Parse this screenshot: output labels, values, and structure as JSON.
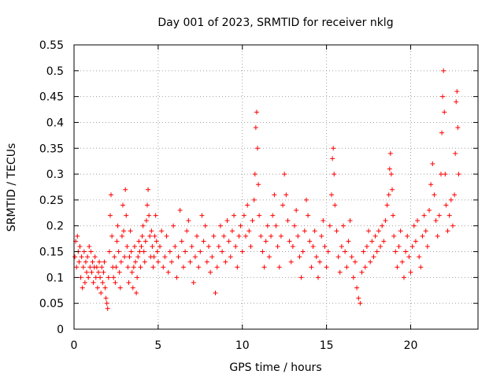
{
  "colors": {
    "series": "#ff0000",
    "grid": "#a0a0a0",
    "axes": "#000000",
    "background": "#ffffff"
  },
  "chart_data": {
    "type": "scatter",
    "marker": "plus",
    "title": "Day 001 of 2023, SRMTID for receiver nklg",
    "xlabel": "GPS time / hours",
    "ylabel": "SRMTID / TECUs",
    "xlim": [
      0,
      24
    ],
    "ylim": [
      0,
      0.55
    ],
    "xticks": [
      0,
      5,
      10,
      15,
      20
    ],
    "xtick_labels": [
      "0",
      "5",
      "10",
      "15",
      "20"
    ],
    "yticks": [
      0,
      0.05,
      0.1,
      0.15,
      0.2,
      0.25,
      0.3,
      0.35,
      0.4,
      0.45,
      0.5,
      0.55
    ],
    "ytick_labels": [
      "0",
      "0.05",
      "0.1",
      "0.15",
      "0.2",
      "0.25",
      "0.3",
      "0.35",
      "0.4",
      "0.45",
      "0.5",
      "0.55"
    ],
    "grid": true,
    "series": [
      {
        "name": "SRMTID",
        "color": "#ff0000",
        "points": [
          [
            0.05,
            0.14
          ],
          [
            0.1,
            0.17
          ],
          [
            0.15,
            0.12
          ],
          [
            0.2,
            0.18
          ],
          [
            0.25,
            0.15
          ],
          [
            0.3,
            0.13
          ],
          [
            0.35,
            0.16
          ],
          [
            0.4,
            0.1
          ],
          [
            0.45,
            0.14
          ],
          [
            0.5,
            0.08
          ],
          [
            0.55,
            0.12
          ],
          [
            0.6,
            0.15
          ],
          [
            0.65,
            0.09
          ],
          [
            0.7,
            0.13
          ],
          [
            0.75,
            0.11
          ],
          [
            0.8,
            0.14
          ],
          [
            0.85,
            0.1
          ],
          [
            0.9,
            0.16
          ],
          [
            0.95,
            0.12
          ],
          [
            1.0,
            0.15
          ],
          [
            1.05,
            0.11
          ],
          [
            1.1,
            0.13
          ],
          [
            1.15,
            0.09
          ],
          [
            1.2,
            0.12
          ],
          [
            1.25,
            0.14
          ],
          [
            1.3,
            0.1
          ],
          [
            1.35,
            0.12
          ],
          [
            1.4,
            0.08
          ],
          [
            1.45,
            0.11
          ],
          [
            1.5,
            0.13
          ],
          [
            1.55,
            0.1
          ],
          [
            1.6,
            0.07
          ],
          [
            1.65,
            0.12
          ],
          [
            1.7,
            0.09
          ],
          [
            1.75,
            0.11
          ],
          [
            1.8,
            0.13
          ],
          [
            1.85,
            0.08
          ],
          [
            1.9,
            0.06
          ],
          [
            1.95,
            0.05
          ],
          [
            2.0,
            0.04
          ],
          [
            2.05,
            0.1
          ],
          [
            2.1,
            0.15
          ],
          [
            2.15,
            0.22
          ],
          [
            2.2,
            0.26
          ],
          [
            2.25,
            0.18
          ],
          [
            2.3,
            0.12
          ],
          [
            2.35,
            0.1
          ],
          [
            2.4,
            0.14
          ],
          [
            2.45,
            0.09
          ],
          [
            2.5,
            0.12
          ],
          [
            2.55,
            0.17
          ],
          [
            2.6,
            0.2
          ],
          [
            2.65,
            0.15
          ],
          [
            2.7,
            0.11
          ],
          [
            2.75,
            0.08
          ],
          [
            2.8,
            0.13
          ],
          [
            2.85,
            0.18
          ],
          [
            2.9,
            0.24
          ],
          [
            2.95,
            0.19
          ],
          [
            3.0,
            0.14
          ],
          [
            3.05,
            0.27
          ],
          [
            3.1,
            0.22
          ],
          [
            3.15,
            0.16
          ],
          [
            3.2,
            0.12
          ],
          [
            3.25,
            0.09
          ],
          [
            3.3,
            0.14
          ],
          [
            3.35,
            0.19
          ],
          [
            3.4,
            0.15
          ],
          [
            3.45,
            0.11
          ],
          [
            3.5,
            0.08
          ],
          [
            3.55,
            0.12
          ],
          [
            3.6,
            0.16
          ],
          [
            3.65,
            0.13
          ],
          [
            3.7,
            0.07
          ],
          [
            3.75,
            0.1
          ],
          [
            3.8,
            0.14
          ],
          [
            3.85,
            0.17
          ],
          [
            3.9,
            0.15
          ],
          [
            3.95,
            0.12
          ],
          [
            4.0,
            0.16
          ],
          [
            4.05,
            0.18
          ],
          [
            4.1,
            0.2
          ],
          [
            4.15,
            0.15
          ],
          [
            4.2,
            0.13
          ],
          [
            4.25,
            0.17
          ],
          [
            4.3,
            0.21
          ],
          [
            4.35,
            0.24
          ],
          [
            4.4,
            0.27
          ],
          [
            4.45,
            0.22
          ],
          [
            4.5,
            0.18
          ],
          [
            4.55,
            0.14
          ],
          [
            4.6,
            0.19
          ],
          [
            4.65,
            0.16
          ],
          [
            4.7,
            0.12
          ],
          [
            4.75,
            0.14
          ],
          [
            4.8,
            0.18
          ],
          [
            4.85,
            0.22
          ],
          [
            4.9,
            0.17
          ],
          [
            4.95,
            0.15
          ],
          [
            5.0,
            0.13
          ],
          [
            5.1,
            0.16
          ],
          [
            5.2,
            0.19
          ],
          [
            5.3,
            0.12
          ],
          [
            5.4,
            0.14
          ],
          [
            5.5,
            0.18
          ],
          [
            5.6,
            0.11
          ],
          [
            5.7,
            0.15
          ],
          [
            5.8,
            0.13
          ],
          [
            5.9,
            0.2
          ],
          [
            6.0,
            0.16
          ],
          [
            6.1,
            0.1
          ],
          [
            6.2,
            0.14
          ],
          [
            6.3,
            0.23
          ],
          [
            6.4,
            0.17
          ],
          [
            6.5,
            0.12
          ],
          [
            6.6,
            0.15
          ],
          [
            6.7,
            0.19
          ],
          [
            6.8,
            0.21
          ],
          [
            6.9,
            0.13
          ],
          [
            7.0,
            0.16
          ],
          [
            7.1,
            0.09
          ],
          [
            7.2,
            0.14
          ],
          [
            7.3,
            0.18
          ],
          [
            7.4,
            0.12
          ],
          [
            7.5,
            0.15
          ],
          [
            7.6,
            0.22
          ],
          [
            7.7,
            0.17
          ],
          [
            7.8,
            0.2
          ],
          [
            7.9,
            0.13
          ],
          [
            8.0,
            0.16
          ],
          [
            8.1,
            0.11
          ],
          [
            8.2,
            0.14
          ],
          [
            8.3,
            0.18
          ],
          [
            8.4,
            0.07
          ],
          [
            8.5,
            0.12
          ],
          [
            8.6,
            0.16
          ],
          [
            8.7,
            0.2
          ],
          [
            8.8,
            0.15
          ],
          [
            8.9,
            0.18
          ],
          [
            9.0,
            0.13
          ],
          [
            9.1,
            0.21
          ],
          [
            9.2,
            0.17
          ],
          [
            9.3,
            0.14
          ],
          [
            9.4,
            0.19
          ],
          [
            9.5,
            0.22
          ],
          [
            9.6,
            0.16
          ],
          [
            9.7,
            0.12
          ],
          [
            9.8,
            0.18
          ],
          [
            9.9,
            0.2
          ],
          [
            10.0,
            0.15
          ],
          [
            10.1,
            0.22
          ],
          [
            10.2,
            0.18
          ],
          [
            10.3,
            0.24
          ],
          [
            10.4,
            0.19
          ],
          [
            10.5,
            0.16
          ],
          [
            10.6,
            0.21
          ],
          [
            10.7,
            0.25
          ],
          [
            10.75,
            0.3
          ],
          [
            10.8,
            0.39
          ],
          [
            10.85,
            0.42
          ],
          [
            10.9,
            0.35
          ],
          [
            10.95,
            0.28
          ],
          [
            11.0,
            0.22
          ],
          [
            11.1,
            0.18
          ],
          [
            11.2,
            0.15
          ],
          [
            11.3,
            0.12
          ],
          [
            11.4,
            0.17
          ],
          [
            11.5,
            0.2
          ],
          [
            11.6,
            0.14
          ],
          [
            11.7,
            0.18
          ],
          [
            11.8,
            0.22
          ],
          [
            11.9,
            0.26
          ],
          [
            12.0,
            0.2
          ],
          [
            12.1,
            0.16
          ],
          [
            12.2,
            0.12
          ],
          [
            12.3,
            0.18
          ],
          [
            12.4,
            0.24
          ],
          [
            12.5,
            0.3
          ],
          [
            12.6,
            0.26
          ],
          [
            12.7,
            0.21
          ],
          [
            12.8,
            0.17
          ],
          [
            12.9,
            0.13
          ],
          [
            13.0,
            0.16
          ],
          [
            13.1,
            0.2
          ],
          [
            13.2,
            0.23
          ],
          [
            13.3,
            0.18
          ],
          [
            13.4,
            0.14
          ],
          [
            13.5,
            0.1
          ],
          [
            13.6,
            0.15
          ],
          [
            13.7,
            0.19
          ],
          [
            13.8,
            0.25
          ],
          [
            13.9,
            0.22
          ],
          [
            14.0,
            0.17
          ],
          [
            14.1,
            0.12
          ],
          [
            14.2,
            0.16
          ],
          [
            14.3,
            0.19
          ],
          [
            14.4,
            0.14
          ],
          [
            14.5,
            0.1
          ],
          [
            14.6,
            0.13
          ],
          [
            14.7,
            0.18
          ],
          [
            14.8,
            0.21
          ],
          [
            14.9,
            0.16
          ],
          [
            15.0,
            0.12
          ],
          [
            15.1,
            0.15
          ],
          [
            15.2,
            0.2
          ],
          [
            15.3,
            0.26
          ],
          [
            15.35,
            0.33
          ],
          [
            15.4,
            0.35
          ],
          [
            15.45,
            0.3
          ],
          [
            15.5,
            0.24
          ],
          [
            15.6,
            0.19
          ],
          [
            15.7,
            0.14
          ],
          [
            15.8,
            0.11
          ],
          [
            15.9,
            0.16
          ],
          [
            16.0,
            0.2
          ],
          [
            16.1,
            0.15
          ],
          [
            16.2,
            0.12
          ],
          [
            16.3,
            0.17
          ],
          [
            16.4,
            0.21
          ],
          [
            16.5,
            0.14
          ],
          [
            16.6,
            0.1
          ],
          [
            16.7,
            0.13
          ],
          [
            16.8,
            0.08
          ],
          [
            16.9,
            0.06
          ],
          [
            17.0,
            0.05
          ],
          [
            17.1,
            0.11
          ],
          [
            17.2,
            0.15
          ],
          [
            17.3,
            0.12
          ],
          [
            17.4,
            0.16
          ],
          [
            17.5,
            0.19
          ],
          [
            17.6,
            0.13
          ],
          [
            17.7,
            0.17
          ],
          [
            17.8,
            0.14
          ],
          [
            17.9,
            0.18
          ],
          [
            18.0,
            0.15
          ],
          [
            18.1,
            0.19
          ],
          [
            18.2,
            0.16
          ],
          [
            18.3,
            0.2
          ],
          [
            18.4,
            0.17
          ],
          [
            18.5,
            0.21
          ],
          [
            18.6,
            0.24
          ],
          [
            18.7,
            0.26
          ],
          [
            18.75,
            0.31
          ],
          [
            18.8,
            0.34
          ],
          [
            18.85,
            0.3
          ],
          [
            18.9,
            0.27
          ],
          [
            18.95,
            0.22
          ],
          [
            19.0,
            0.18
          ],
          [
            19.1,
            0.15
          ],
          [
            19.2,
            0.12
          ],
          [
            19.3,
            0.16
          ],
          [
            19.4,
            0.19
          ],
          [
            19.5,
            0.13
          ],
          [
            19.6,
            0.1
          ],
          [
            19.7,
            0.15
          ],
          [
            19.8,
            0.18
          ],
          [
            19.9,
            0.14
          ],
          [
            20.0,
            0.11
          ],
          [
            20.1,
            0.16
          ],
          [
            20.2,
            0.2
          ],
          [
            20.3,
            0.17
          ],
          [
            20.4,
            0.21
          ],
          [
            20.5,
            0.14
          ],
          [
            20.6,
            0.12
          ],
          [
            20.7,
            0.18
          ],
          [
            20.8,
            0.22
          ],
          [
            20.9,
            0.19
          ],
          [
            21.0,
            0.16
          ],
          [
            21.1,
            0.23
          ],
          [
            21.2,
            0.28
          ],
          [
            21.3,
            0.32
          ],
          [
            21.4,
            0.26
          ],
          [
            21.5,
            0.21
          ],
          [
            21.6,
            0.18
          ],
          [
            21.7,
            0.22
          ],
          [
            21.8,
            0.3
          ],
          [
            21.85,
            0.38
          ],
          [
            21.9,
            0.45
          ],
          [
            21.95,
            0.5
          ],
          [
            22.0,
            0.42
          ],
          [
            22.05,
            0.3
          ],
          [
            22.1,
            0.24
          ],
          [
            22.2,
            0.19
          ],
          [
            22.3,
            0.22
          ],
          [
            22.4,
            0.25
          ],
          [
            22.5,
            0.2
          ],
          [
            22.6,
            0.26
          ],
          [
            22.65,
            0.34
          ],
          [
            22.7,
            0.44
          ],
          [
            22.75,
            0.46
          ],
          [
            22.8,
            0.39
          ],
          [
            22.85,
            0.3
          ]
        ]
      }
    ]
  }
}
